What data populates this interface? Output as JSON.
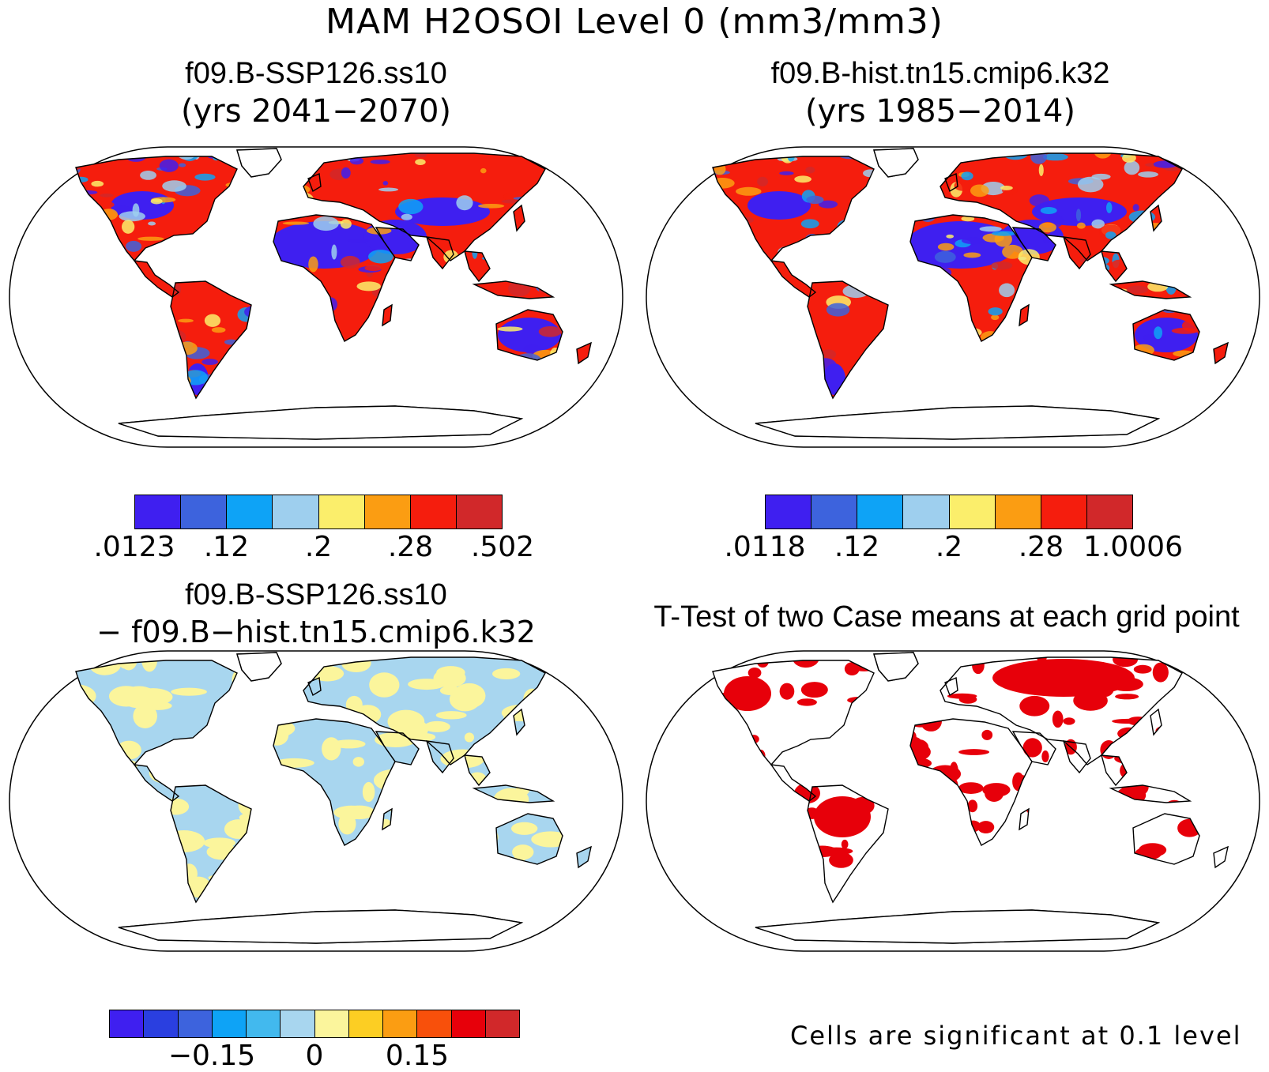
{
  "title": "MAM H2OSOI Level 0 (mm3/mm3)",
  "panels": {
    "top_left": {
      "title": "f09.B-SSP126.ss10",
      "subtitle": "(yrs 2041−2070)"
    },
    "top_right": {
      "title": "f09.B-hist.tn15.cmip6.k32",
      "subtitle": "(yrs 1985−2014)"
    },
    "bottom_left": {
      "title": "f09.B-SSP126.ss10",
      "subtitle": "− f09.B−hist.tn15.cmip6.k32"
    },
    "bottom_right": {
      "title": "T-Test of two Case means at each grid point",
      "note": "Cells are significant at 0.1 level"
    }
  },
  "colorbars": {
    "top_left": {
      "colors": [
        "#3f1ff0",
        "#3d63dd",
        "#0ea3f6",
        "#9ecfee",
        "#fbee6b",
        "#fb9d12",
        "#f51d0d",
        "#d1282a"
      ],
      "labels": [
        ".0123",
        ".12",
        ".2",
        ".28",
        ".502"
      ]
    },
    "top_right": {
      "colors": [
        "#3f1ff0",
        "#3d63dd",
        "#0ea3f6",
        "#9ecfee",
        "#fbee6b",
        "#fb9d12",
        "#f51d0d",
        "#d1282a"
      ],
      "labels": [
        ".0118",
        ".12",
        ".2",
        ".28",
        "1.0006"
      ]
    },
    "bottom_left": {
      "colors": [
        "#3f1ff0",
        "#2a3fe0",
        "#3d63dd",
        "#0ea3f6",
        "#42b9ee",
        "#a8d6ef",
        "#fbf59c",
        "#fcce23",
        "#fb9d12",
        "#f8500b",
        "#e7000a",
        "#d1282a"
      ],
      "labels": [
        "−0.15",
        "0",
        "0.15"
      ]
    }
  },
  "map_palettes": {
    "wet_dry": [
      "#3f1ff0",
      "#3d63dd",
      "#0ea3f6",
      "#9ecfee",
      "#fbee6b",
      "#fb9d12",
      "#f51d0d",
      "#d1282a"
    ],
    "difference": [
      "#a8d6ef",
      "#fbf59c"
    ],
    "significance": "#e7000a"
  }
}
